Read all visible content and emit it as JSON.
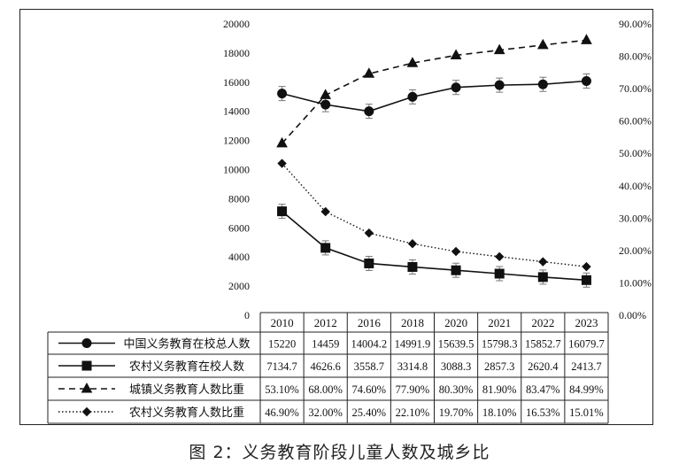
{
  "caption": "图 2：义务教育阶段儿童人数及城乡比",
  "chart_data": {
    "type": "line",
    "categories": [
      "2010",
      "2012",
      "2016",
      "2018",
      "2020",
      "2021",
      "2022",
      "2023"
    ],
    "left_axis": {
      "ylim": [
        0,
        20000
      ],
      "ticks": [
        "0",
        "2000",
        "4000",
        "6000",
        "8000",
        "10000",
        "12000",
        "14000",
        "16000",
        "18000",
        "20000"
      ]
    },
    "right_axis": {
      "ylim": [
        0,
        90
      ],
      "ticks": [
        "0.00%",
        "10.00%",
        "20.00%",
        "30.00%",
        "40.00%",
        "50.00%",
        "60.00%",
        "70.00%",
        "80.00%",
        "90.00%"
      ]
    },
    "series": [
      {
        "name": "中国义务教育在校总人数",
        "axis": "left",
        "marker": "circle",
        "line": "solid",
        "error_bars": true,
        "values": [
          15220,
          14459,
          14004.2,
          14991.9,
          15639.5,
          15798.3,
          15852.7,
          16079.7
        ],
        "table_labels": [
          "15220",
          "14459",
          "14004.2",
          "14991.9",
          "15639.5",
          "15798.3",
          "15852.7",
          "16079.7"
        ]
      },
      {
        "name": "农村义务教育在校人数",
        "axis": "left",
        "marker": "square",
        "line": "solid",
        "error_bars": true,
        "values": [
          7134.7,
          4626.6,
          3558.7,
          3314.8,
          3088.3,
          2857.3,
          2620.4,
          2413.7
        ],
        "table_labels": [
          "7134.7",
          "4626.6",
          "3558.7",
          "3314.8",
          "3088.3",
          "2857.3",
          "2620.4",
          "2413.7"
        ]
      },
      {
        "name": "城镇义务教育人数比重",
        "axis": "right",
        "marker": "triangle",
        "line": "dashed",
        "error_bars": false,
        "values": [
          53.1,
          68.0,
          74.6,
          77.9,
          80.3,
          81.9,
          83.47,
          84.99
        ],
        "table_labels": [
          "53.10%",
          "68.00%",
          "74.60%",
          "77.90%",
          "80.30%",
          "81.90%",
          "83.47%",
          "84.99%"
        ]
      },
      {
        "name": "农村义务教育人数比重",
        "axis": "right",
        "marker": "diamond",
        "line": "dotted",
        "error_bars": false,
        "values": [
          46.9,
          32.0,
          25.4,
          22.1,
          19.7,
          18.1,
          16.53,
          15.01
        ],
        "table_labels": [
          "46.90%",
          "32.00%",
          "25.40%",
          "22.10%",
          "19.70%",
          "18.10%",
          "16.53%",
          "15.01%"
        ]
      }
    ],
    "grid": false,
    "legend": "data-table below chart"
  }
}
